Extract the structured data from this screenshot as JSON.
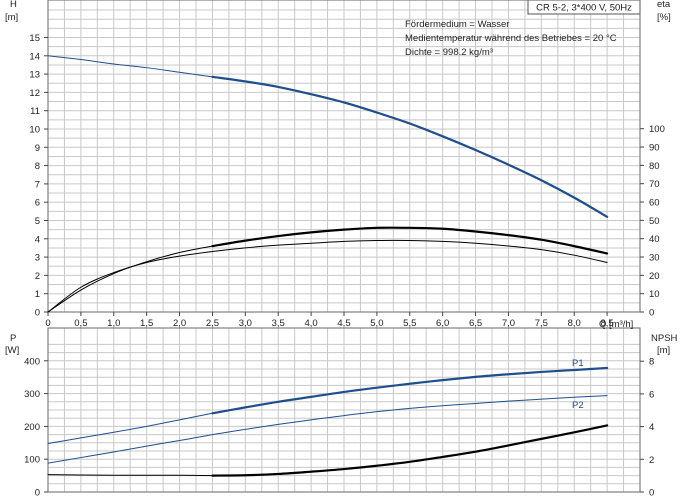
{
  "title_box": "CR 5-2, 3*400 V, 50Hz",
  "info_lines": [
    "Fördermedium = Wasser",
    "Medientemperatur während des Betriebes = 20 °C",
    "Dichte = 998.2 kg/m³"
  ],
  "colors": {
    "grid": "#c8c8c8",
    "blue": "#1f4e8c",
    "black": "#000000",
    "axis": "#444444"
  },
  "chart_data": [
    {
      "type": "line",
      "y_title": "H",
      "y_unit": "[m]",
      "y2_title": "eta",
      "y2_unit": "[%]",
      "x_title": "Q [m³/h]",
      "xlim": [
        0,
        9
      ],
      "ylim": [
        0,
        16.5
      ],
      "x_ticks": [
        0,
        0.5,
        1,
        1.5,
        2,
        2.5,
        3,
        3.5,
        4,
        4.5,
        5,
        5.5,
        6,
        6.5,
        7,
        7.5,
        8,
        8.5
      ],
      "x_tick_labels": [
        "0",
        "0,5",
        "1,0",
        "1,5",
        "2,0",
        "2,5",
        "3,0",
        "3,5",
        "4,0",
        "4,5",
        "5,0",
        "5,5",
        "6,0",
        "6,5",
        "7,0",
        "7,5",
        "8,0",
        "8,5"
      ],
      "y_ticks": [
        0,
        1,
        2,
        3,
        4,
        5,
        6,
        7,
        8,
        9,
        10,
        11,
        12,
        13,
        14,
        15
      ],
      "y_tick_labels": [
        "0",
        "1",
        "2",
        "3",
        "4",
        "5",
        "6",
        "7",
        "8",
        "9",
        "10",
        "11",
        "12",
        "13",
        "14",
        "15"
      ],
      "y2_ticks": [
        0,
        10,
        20,
        30,
        40,
        50,
        60,
        70,
        80,
        90,
        100
      ],
      "y2_tick_labels": [
        "0",
        "10",
        "20",
        "30",
        "40",
        "50",
        "60",
        "70",
        "80",
        "90",
        "100"
      ],
      "series": [
        {
          "axis": "left",
          "color": "#1f4e8c",
          "width": 1,
          "x": [
            0,
            0.5,
            1,
            1.5,
            2,
            2.5
          ],
          "y": [
            14.0,
            13.8,
            13.55,
            13.35,
            13.1,
            12.85
          ]
        },
        {
          "axis": "left",
          "color": "#1f4e8c",
          "width": 2.2,
          "x": [
            2.5,
            3,
            3.5,
            4,
            4.5,
            5,
            5.5,
            6,
            6.5,
            7,
            7.5,
            8,
            8.5
          ],
          "y": [
            12.85,
            12.6,
            12.3,
            11.9,
            11.45,
            10.9,
            10.3,
            9.6,
            8.85,
            8.05,
            7.2,
            6.25,
            5.2
          ]
        },
        {
          "axis": "right",
          "color": "#000000",
          "width": 1,
          "x": [
            0,
            0.5,
            1,
            1.5,
            2,
            2.5,
            3,
            3.5,
            4,
            4.5,
            5,
            5.5,
            6,
            6.5,
            7,
            7.5,
            8,
            8.5
          ],
          "y": [
            0,
            13.5,
            21.5,
            27,
            30.5,
            33,
            35,
            36.5,
            37.5,
            38.5,
            39,
            39,
            38.5,
            37.5,
            36,
            34,
            31,
            27
          ]
        },
        {
          "axis": "left",
          "color": "#000000",
          "width": 1,
          "x": [
            0,
            0.5,
            1,
            1.5,
            2,
            2.5
          ],
          "y": [
            0,
            1.2,
            2.1,
            2.75,
            3.25,
            3.6
          ]
        },
        {
          "axis": "left",
          "color": "#000000",
          "width": 2.2,
          "x": [
            2.5,
            3,
            3.5,
            4,
            4.5,
            5,
            5.5,
            6,
            6.5,
            7,
            7.5,
            8,
            8.5
          ],
          "y": [
            3.6,
            3.9,
            4.15,
            4.35,
            4.5,
            4.6,
            4.6,
            4.55,
            4.4,
            4.2,
            3.95,
            3.6,
            3.2
          ]
        }
      ]
    },
    {
      "type": "line",
      "y_title": "P",
      "y_unit": "[W]",
      "y2_title": "NPSH",
      "y2_unit": "[m]",
      "xlim": [
        0,
        9
      ],
      "ylim": [
        0,
        470
      ],
      "y_ticks": [
        0,
        100,
        200,
        300,
        400
      ],
      "y_tick_labels": [
        "0",
        "100",
        "200",
        "300",
        "400"
      ],
      "y2_ticks": [
        0,
        2,
        4,
        6,
        8
      ],
      "y2_tick_labels": [
        "0",
        "2",
        "4",
        "6",
        "8"
      ],
      "series": [
        {
          "name": "P1",
          "axis": "left",
          "color": "#1f4e8c",
          "width": 1,
          "x": [
            0,
            0.5,
            1,
            1.5,
            2,
            2.5
          ],
          "y": [
            148,
            165,
            182,
            200,
            220,
            240
          ]
        },
        {
          "name": "P1",
          "axis": "left",
          "color": "#1f4e8c",
          "width": 2.2,
          "x": [
            2.5,
            3,
            3.5,
            4,
            4.5,
            5,
            5.5,
            6,
            6.5,
            7,
            7.5,
            8,
            8.5
          ],
          "y": [
            240,
            258,
            275,
            290,
            305,
            318,
            330,
            341,
            351,
            359,
            366,
            372,
            378
          ]
        },
        {
          "name": "P2",
          "axis": "left",
          "color": "#1f4e8c",
          "width": 1,
          "x": [
            0,
            0.5,
            1,
            1.5,
            2,
            2.5,
            3,
            3.5,
            4,
            4.5,
            5,
            5.5,
            6,
            6.5,
            7,
            7.5,
            8,
            8.5
          ],
          "y": [
            88,
            105,
            122,
            140,
            157,
            175,
            191,
            206,
            220,
            233,
            245,
            255,
            263,
            270,
            277,
            283,
            289,
            294
          ]
        },
        {
          "axis": "left",
          "color": "#000000",
          "width": 1,
          "x": [
            0,
            0.5,
            1,
            1.5,
            2,
            2.5
          ],
          "y": [
            53,
            52,
            51,
            51,
            51,
            50
          ]
        },
        {
          "axis": "left",
          "color": "#000000",
          "width": 2.2,
          "x": [
            2.5,
            3,
            3.5,
            4,
            4.5,
            5,
            5.5,
            6,
            6.5,
            7,
            7.5,
            8,
            8.5
          ],
          "y": [
            50,
            51,
            55,
            62,
            70,
            80,
            92,
            107,
            123,
            142,
            162,
            182,
            203
          ]
        }
      ],
      "labels": [
        "P1",
        "P2"
      ]
    }
  ]
}
